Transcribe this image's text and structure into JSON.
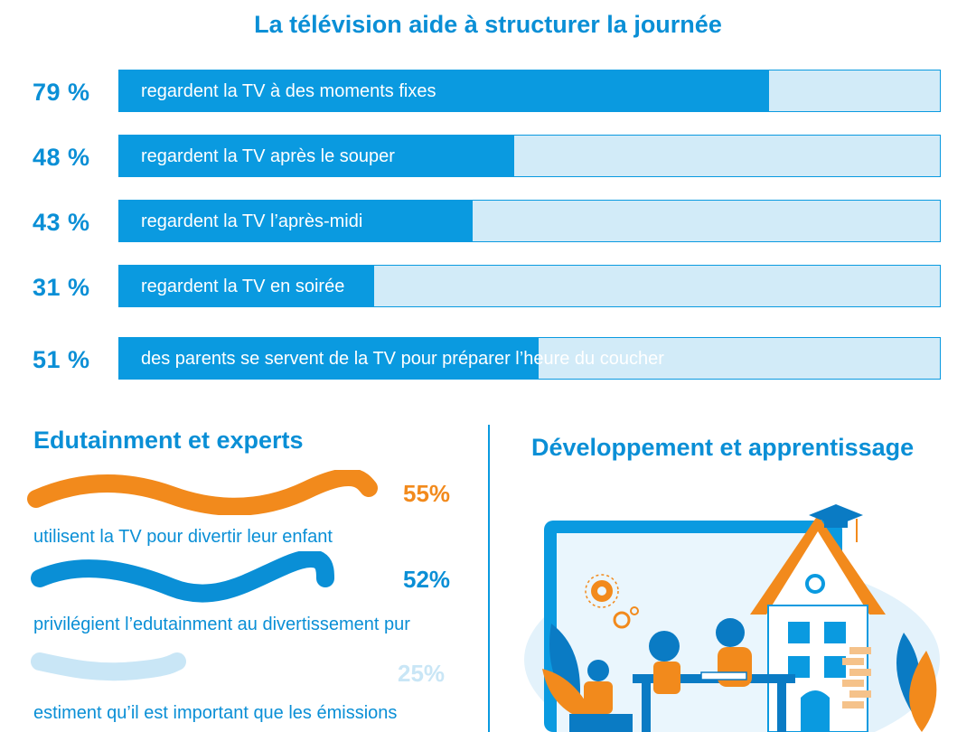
{
  "chart_data": {
    "type": "bar",
    "orientation": "horizontal",
    "title": "La télévision aide à structurer la journée",
    "xlim": [
      0,
      100
    ],
    "bars": [
      {
        "value": 79,
        "pct_label": "79 %",
        "label": "regardent la TV à des moments fixes"
      },
      {
        "value": 48,
        "pct_label": "48 %",
        "label": "regardent la TV après le souper"
      },
      {
        "value": 43,
        "pct_label": "43 %",
        "label": "regardent la TV l’après-midi"
      },
      {
        "value": 31,
        "pct_label": "31 %",
        "label": "regardent la TV en soirée"
      },
      {
        "value": 51,
        "pct_label": "51 %",
        "label": "des parents se servent de la TV pour préparer l’heure du coucher"
      }
    ]
  },
  "edutainment": {
    "title": "Edutainment et experts",
    "stats": [
      {
        "value": 55,
        "pct_label": "55%",
        "text": "utilisent la TV pour divertir leur enfant",
        "color": "#f28a1c"
      },
      {
        "value": 52,
        "pct_label": "52%",
        "text": "privilégient l’edutainment au divertissement pur",
        "color": "#0a8fd6"
      },
      {
        "value": 25,
        "pct_label": "25%",
        "text": "estiment qu’il est important que les émissions",
        "color": "#c9e6f6"
      }
    ]
  },
  "development": {
    "title": "Développement et apprentissage"
  },
  "colors": {
    "primary": "#0a9ae0",
    "light": "#d2ebf8",
    "orange": "#f28a1c"
  }
}
